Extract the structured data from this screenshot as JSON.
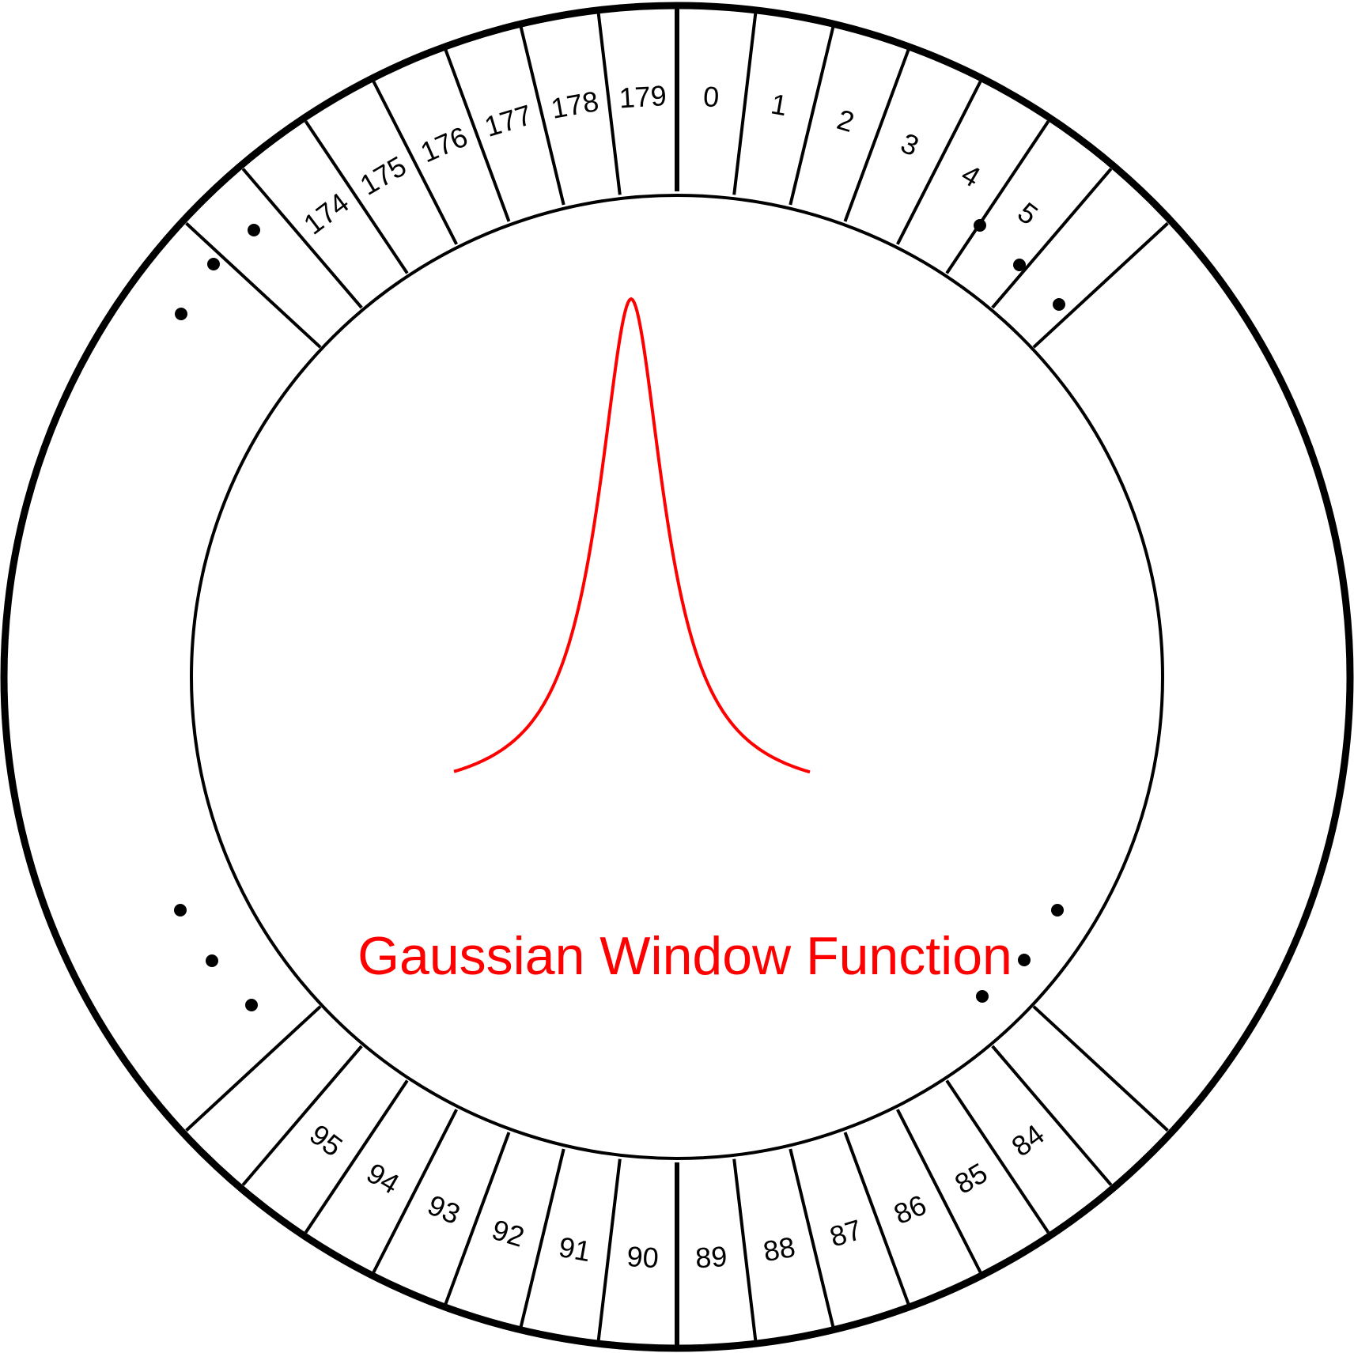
{
  "diagram": {
    "title": "Gaussian Window Function",
    "accent_color": "#ff0000",
    "line_color": "#000000",
    "top_bins": [
      "174",
      "175",
      "176",
      "177",
      "178",
      "179",
      "0",
      "1",
      "2",
      "3",
      "4",
      "5"
    ],
    "bottom_bins": [
      "95",
      "94",
      "93",
      "92",
      "91",
      "90",
      "89",
      "88",
      "87",
      "86",
      "85",
      "84"
    ],
    "ellipsis_glyph": "•"
  }
}
